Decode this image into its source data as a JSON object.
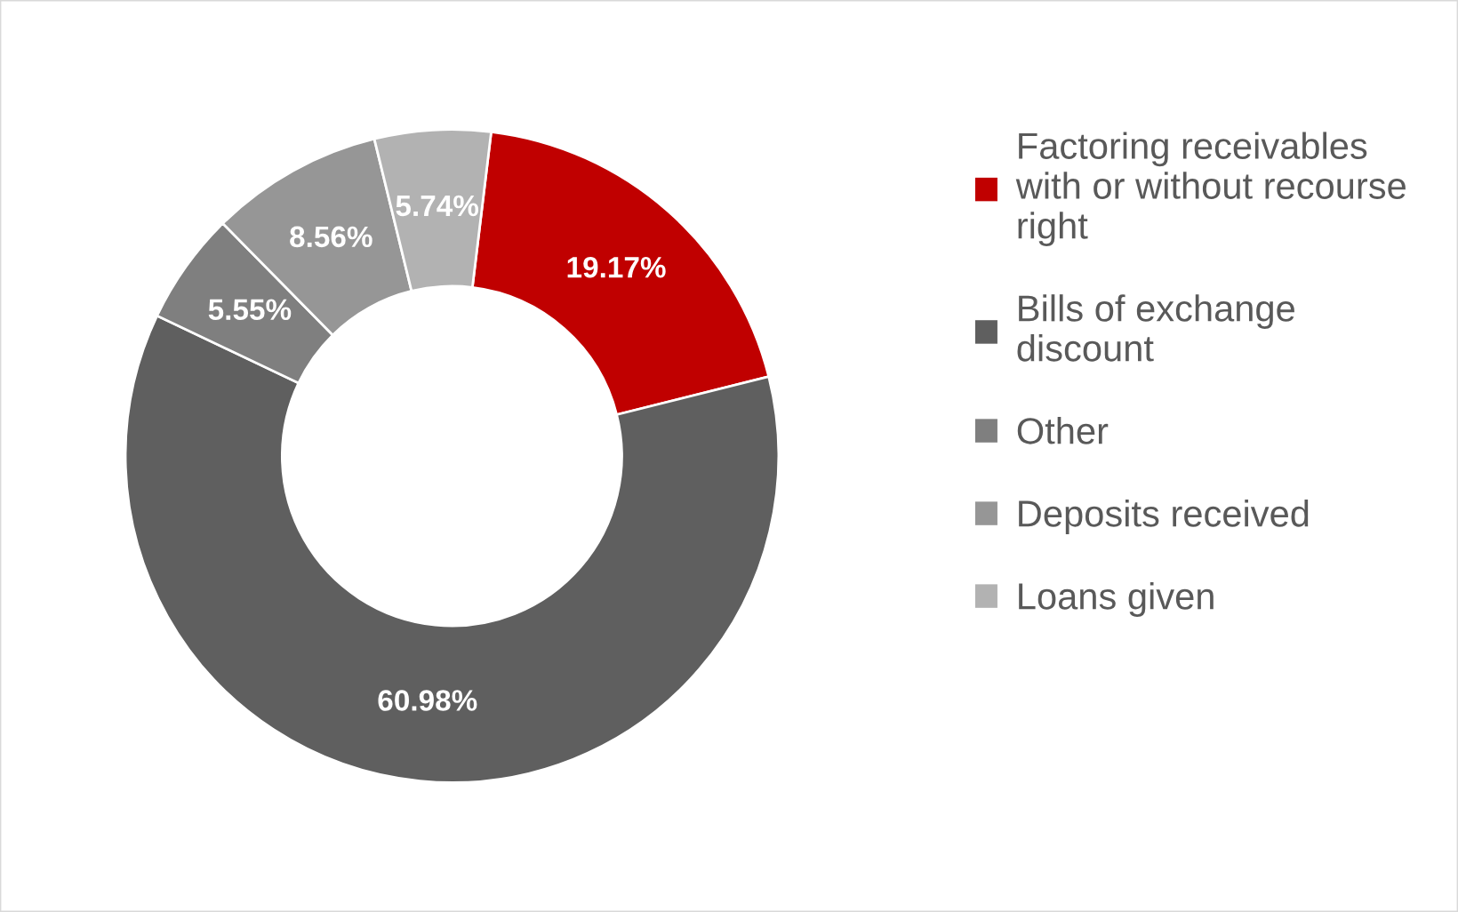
{
  "chart_data": {
    "type": "donut",
    "categories": [
      "Factoring receivables with or without recourse right",
      "Bills of exchange discount",
      "Other",
      "Deposits received",
      "Loans given"
    ],
    "values": [
      19.17,
      60.98,
      5.55,
      8.56,
      5.74
    ],
    "colors": [
      "#c00000",
      "#5f5f5f",
      "#7f7f7f",
      "#969696",
      "#b2b2b2"
    ],
    "value_labels": [
      "19.17%",
      "60.98%",
      "5.55%",
      "8.56%",
      "5.74%"
    ],
    "legend": "right"
  }
}
